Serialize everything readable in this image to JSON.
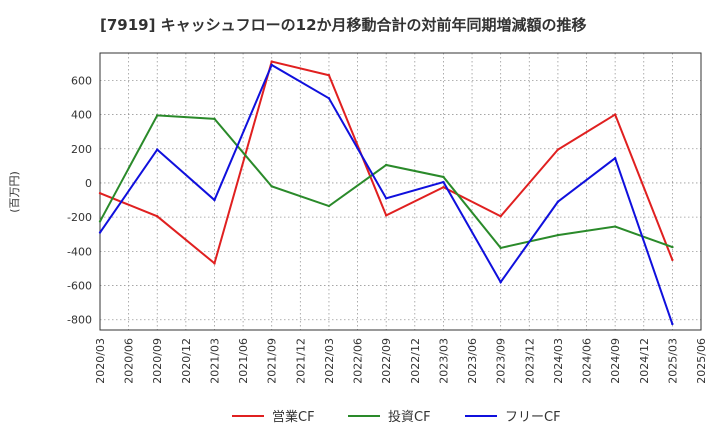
{
  "chart_data": {
    "type": "line",
    "title": "[7919]  キャッシュフローの12か月移動合計の対前年同期増減額の推移",
    "ylabel": "(百万円)",
    "xlabel": "",
    "ylim": [
      -860,
      760
    ],
    "yticks": [
      600,
      400,
      200,
      0,
      -200,
      -400,
      -600,
      -800
    ],
    "ytick_labels": [
      "600",
      "400",
      "200",
      "0",
      "-200",
      "-400",
      "-600",
      "-800"
    ],
    "categories": [
      "2020/03",
      "2020/06",
      "2020/09",
      "2020/12",
      "2021/03",
      "2021/06",
      "2021/09",
      "2021/12",
      "2022/03",
      "2022/06",
      "2022/09",
      "2022/12",
      "2023/03",
      "2023/06",
      "2023/09",
      "2023/12",
      "2024/03",
      "2024/06",
      "2024/09",
      "2024/12",
      "2025/03",
      "2025/06"
    ],
    "grid": true,
    "legend_position": "bottom",
    "series": [
      {
        "name": "営業CF",
        "color": "#e02020",
        "values": [
          -60,
          null,
          -195,
          null,
          -470,
          null,
          710,
          null,
          630,
          null,
          -190,
          null,
          -25,
          null,
          -195,
          null,
          195,
          null,
          400,
          null,
          -450,
          null
        ]
      },
      {
        "name": "投資CF",
        "color": "#2a8a2a",
        "values": [
          -225,
          null,
          395,
          null,
          375,
          null,
          -20,
          null,
          -135,
          null,
          105,
          null,
          35,
          null,
          -380,
          null,
          -305,
          null,
          -255,
          null,
          -375,
          null
        ]
      },
      {
        "name": "フリーCF",
        "color": "#1010dd",
        "values": [
          -290,
          null,
          195,
          null,
          -100,
          null,
          690,
          null,
          495,
          null,
          -90,
          null,
          5,
          null,
          -580,
          null,
          -110,
          null,
          145,
          null,
          -825,
          null
        ]
      }
    ]
  }
}
